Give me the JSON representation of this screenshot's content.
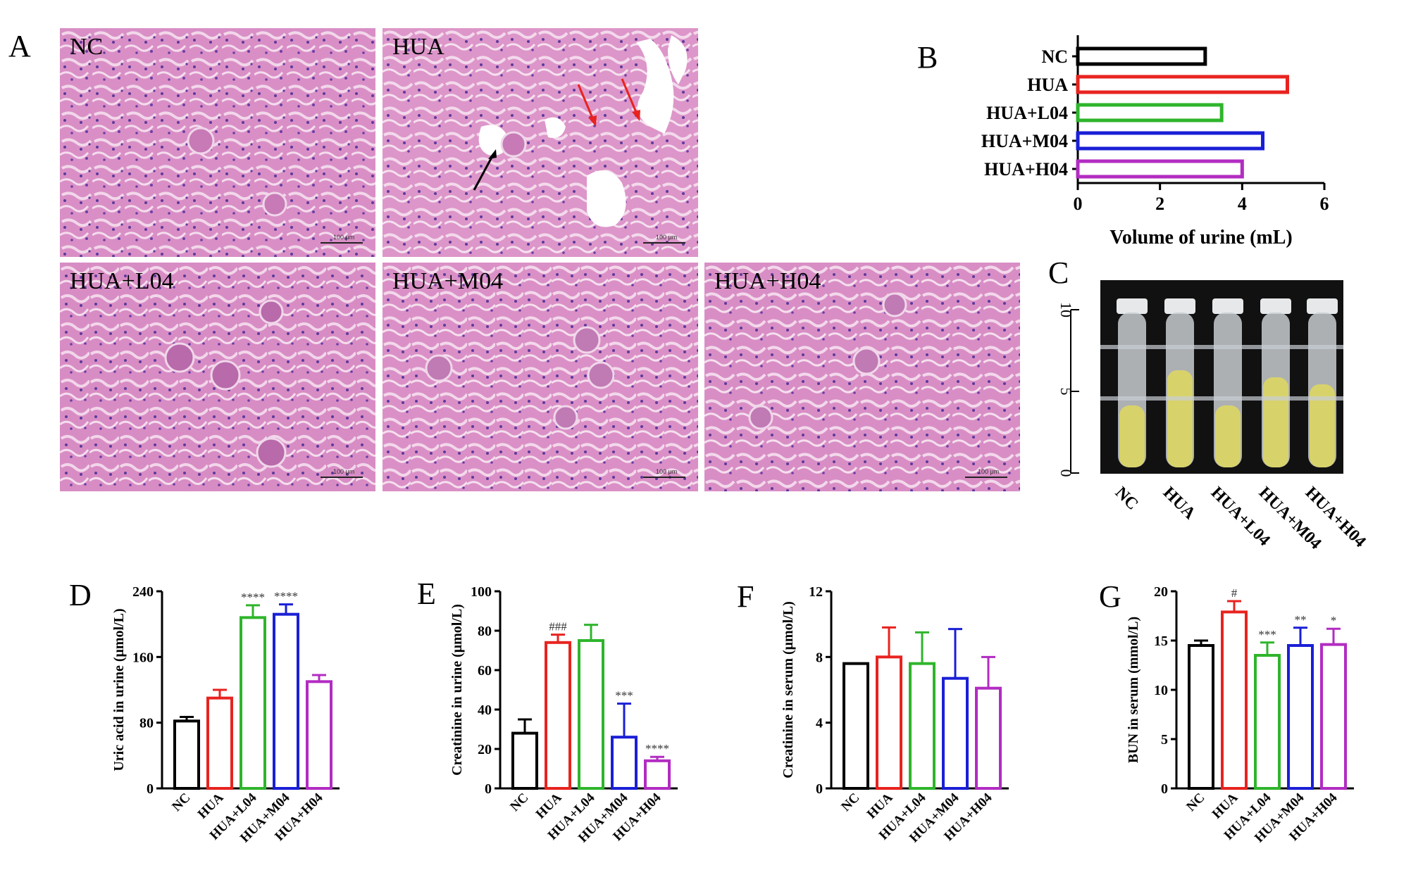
{
  "panels": {
    "A": "A",
    "B": "B",
    "C": "C",
    "D": "D",
    "E": "E",
    "F": "F",
    "G": "G"
  },
  "panel_a": {
    "images": [
      {
        "label": "NC",
        "scalebar": "100 μm"
      },
      {
        "label": "HUA",
        "scalebar": "100 μm"
      },
      {
        "label": "HUA+L04",
        "scalebar": "100 μm"
      },
      {
        "label": "HUA+M04",
        "scalebar": "100 μm"
      },
      {
        "label": "HUA+H04",
        "scalebar": "100 μm"
      }
    ]
  },
  "panel_c": {
    "ruler_ticks": [
      "10",
      "5",
      "0"
    ],
    "tube_labels": [
      "NC",
      "HUA",
      "HUA+L04",
      "HUA+M04",
      "HUA+H04"
    ]
  },
  "colors": {
    "NC": "#000000",
    "HUA": "#e8231f",
    "HUA+L04": "#2fb52c",
    "HUA+M04": "#1a1fd6",
    "HUA+H04": "#b22cc2",
    "tissue": "#d98fc6",
    "urine": "#d8d26b"
  },
  "chart_data": [
    {
      "id": "B",
      "type": "bar",
      "orientation": "horizontal",
      "categories": [
        "NC",
        "HUA",
        "HUA+L04",
        "HUA+M04",
        "HUA+H04"
      ],
      "values": [
        3.1,
        5.1,
        3.5,
        4.5,
        4.0
      ],
      "xlabel": "Volume of urine (mL)",
      "xlim": [
        0,
        6
      ],
      "xticks": [
        "0",
        "2",
        "4",
        "6"
      ]
    },
    {
      "id": "D",
      "type": "bar",
      "categories": [
        "NC",
        "HUA",
        "HUA+L04",
        "HUA+M04",
        "HUA+H04"
      ],
      "values": [
        82,
        110,
        208,
        212,
        130
      ],
      "errors": [
        5,
        10,
        15,
        12,
        8
      ],
      "sig": [
        "",
        "",
        "****",
        "****",
        ""
      ],
      "ylabel": "Uric acid in urine (μmol/L)",
      "ylim": [
        0,
        240
      ],
      "yticks": [
        "0",
        "80",
        "160",
        "240"
      ]
    },
    {
      "id": "E",
      "type": "bar",
      "categories": [
        "NC",
        "HUA",
        "HUA+L04",
        "HUA+M04",
        "HUA+H04"
      ],
      "values": [
        28,
        74,
        75,
        26,
        14
      ],
      "errors": [
        7,
        4,
        8,
        17,
        2
      ],
      "sig": [
        "",
        "###",
        "",
        "***",
        "****"
      ],
      "ylabel": "Creatinine in urine (μmol/L)",
      "ylim": [
        0,
        100
      ],
      "yticks": [
        "0",
        "20",
        "40",
        "60",
        "80",
        "100"
      ]
    },
    {
      "id": "F",
      "type": "bar",
      "categories": [
        "NC",
        "HUA",
        "HUA+L04",
        "HUA+M04",
        "HUA+H04"
      ],
      "values": [
        7.6,
        8.0,
        7.6,
        6.7,
        6.1
      ],
      "errors": [
        0,
        1.8,
        1.9,
        3.0,
        1.9
      ],
      "sig": [
        "",
        "",
        "",
        "",
        ""
      ],
      "ylabel": "Creatinine in serum (μmol/L)",
      "ylim": [
        0,
        12
      ],
      "yticks": [
        "0",
        "4",
        "8",
        "12"
      ]
    },
    {
      "id": "G",
      "type": "bar",
      "categories": [
        "NC",
        "HUA",
        "HUA+L04",
        "HUA+M04",
        "HUA+H04"
      ],
      "values": [
        14.5,
        17.9,
        13.5,
        14.5,
        14.6
      ],
      "errors": [
        0.5,
        1.1,
        1.3,
        1.8,
        1.6
      ],
      "sig": [
        "",
        "#",
        "***",
        "**",
        "*"
      ],
      "ylabel": "BUN  in serum (mmol/L)",
      "ylim": [
        0,
        20
      ],
      "yticks": [
        "0",
        "5",
        "10",
        "15",
        "20"
      ]
    }
  ]
}
